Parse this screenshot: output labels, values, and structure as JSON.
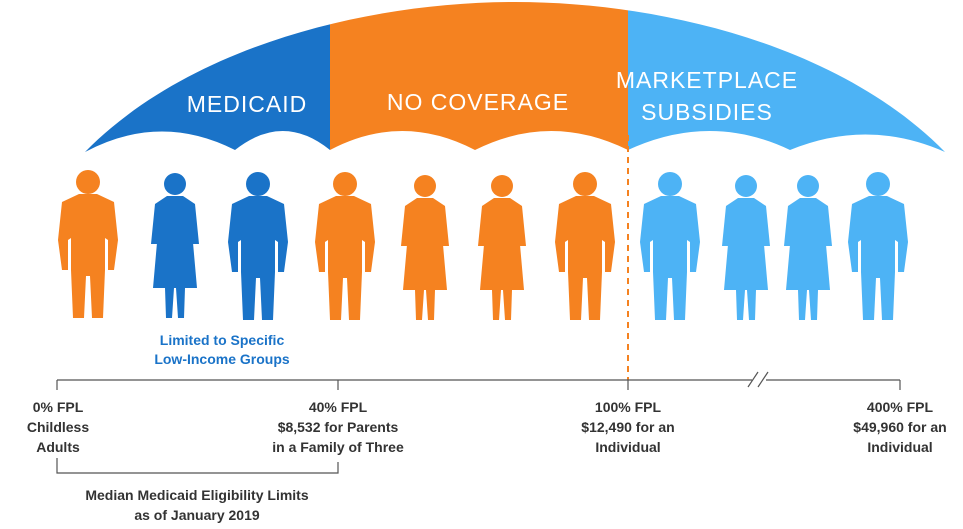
{
  "umbrella": {
    "segments": [
      {
        "lines": [
          "MEDICAID"
        ]
      },
      {
        "lines": [
          "NO COVERAGE"
        ]
      },
      {
        "lines": [
          "MARKETPLACE",
          "SUBSIDIES"
        ]
      }
    ]
  },
  "note": {
    "lines": [
      "Limited to Specific",
      "Low-Income Groups"
    ]
  },
  "markers": [
    {
      "lines": [
        "0% FPL",
        "Childless",
        "Adults"
      ]
    },
    {
      "lines": [
        "40% FPL",
        "$8,532 for Parents",
        "in a Family of Three"
      ]
    },
    {
      "lines": [
        "100% FPL",
        "$12,490 for an",
        "Individual"
      ]
    },
    {
      "lines": [
        "400% FPL",
        "$49,960 for an",
        "Individual"
      ]
    }
  ],
  "bracket": {
    "lines": [
      "Median Medicaid Eligibility Limits",
      "as of January 2019"
    ]
  }
}
